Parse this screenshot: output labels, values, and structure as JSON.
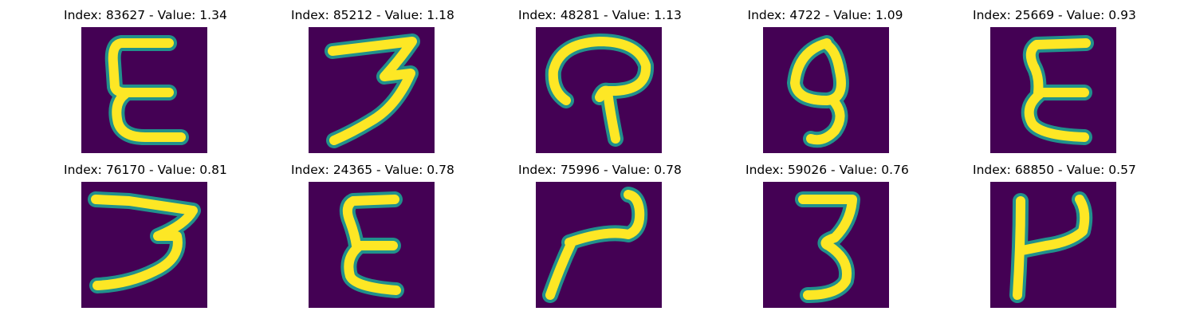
{
  "chart_data": {
    "type": "image-grid",
    "rows": 2,
    "cols": 5,
    "colors": {
      "background": "#440154",
      "mid": "#21918c",
      "stroke": "#fde725"
    },
    "items": [
      {
        "title": "Index: 83627 - Value: 1.34",
        "index": 83627,
        "value": 1.34,
        "glyph": "E-tall"
      },
      {
        "title": "Index: 85212 - Value: 1.18",
        "index": 85212,
        "value": 1.18,
        "glyph": "3-slant"
      },
      {
        "title": "Index: 48281 - Value: 1.13",
        "index": 48281,
        "value": 1.13,
        "glyph": "hook"
      },
      {
        "title": "Index: 4722 - Value: 1.09",
        "index": 4722,
        "value": 1.09,
        "glyph": "loop"
      },
      {
        "title": "Index: 25669 - Value: 0.93",
        "index": 25669,
        "value": 0.93,
        "glyph": "E-curvy"
      },
      {
        "title": "Index: 76170 - Value: 0.81",
        "index": 76170,
        "value": 0.81,
        "glyph": "3-wide"
      },
      {
        "title": "Index: 24365 - Value: 0.78",
        "index": 24365,
        "value": 0.78,
        "glyph": "E-thin"
      },
      {
        "title": "Index: 75996 - Value: 0.78",
        "index": 75996,
        "value": 0.78,
        "glyph": "N-curve"
      },
      {
        "title": "Index: 59026 - Value: 0.76",
        "index": 59026,
        "value": 0.76,
        "glyph": "3-round"
      },
      {
        "title": "Index: 68850 - Value: 0.57",
        "index": 68850,
        "value": 0.57,
        "glyph": "H-shape"
      }
    ]
  }
}
